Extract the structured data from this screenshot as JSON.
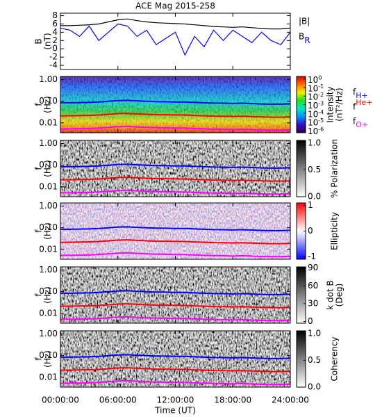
{
  "chart_data": [
    {
      "type": "line",
      "title": "ACE Mag 2015-258",
      "ylabel": [
        "B",
        "(nT)"
      ],
      "ylim": [
        -5,
        8.6
      ],
      "yticks": [
        -4,
        -2,
        0,
        2,
        4,
        6,
        8
      ],
      "x": [
        0,
        1,
        2,
        3,
        4,
        5,
        6,
        7,
        8,
        9,
        10,
        11,
        12,
        13,
        14,
        15,
        16,
        17,
        18,
        19,
        20,
        21,
        22,
        23,
        24
      ],
      "series": [
        {
          "name": "|B|",
          "color": "#000000",
          "values": [
            5.6,
            5.6,
            5.7,
            5.8,
            6.0,
            6.5,
            7.0,
            7.2,
            6.8,
            6.5,
            6.3,
            6.2,
            6.1,
            6.0,
            5.8,
            5.6,
            5.4,
            5.3,
            5.2,
            5.3,
            5.1,
            4.9,
            4.8,
            4.8,
            5.0
          ]
        },
        {
          "name": "B",
          "subscript": "R",
          "color": "#0000ff",
          "values": [
            5.0,
            4.5,
            3.0,
            5.5,
            2.0,
            4.0,
            6.0,
            5.5,
            3.0,
            4.5,
            1.0,
            2.5,
            4.0,
            -1.5,
            3.0,
            0.5,
            4.5,
            2.0,
            4.5,
            3.0,
            1.5,
            4.0,
            2.0,
            1.0,
            4.0
          ]
        }
      ]
    },
    {
      "type": "spectrogram",
      "ylabel": [
        "f",
        "(Hz)"
      ],
      "log_y": true,
      "ylim": [
        0.0035,
        1.4
      ],
      "yticks": [
        {
          "value": 1,
          "label": "1.00"
        },
        {
          "value": 0.1,
          "label": "0.10"
        },
        {
          "value": 0.01,
          "label": "0.01"
        }
      ],
      "colorbar_label": [
        "Intensity",
        "(nT²/Hz)"
      ],
      "colorbar_log": true,
      "clim": [
        5e-07,
        2
      ],
      "colorbar_ticks": [
        {
          "value": 1,
          "label": "10",
          "exponent": "0"
        },
        {
          "value": 0.1,
          "label": "10",
          "exponent": "-1"
        },
        {
          "value": 0.01,
          "label": "10",
          "exponent": "-2"
        },
        {
          "value": 0.001,
          "label": "10",
          "exponent": "-3"
        },
        {
          "value": 0.0001,
          "label": "10",
          "exponent": "-4"
        },
        {
          "value": 1e-05,
          "label": "10",
          "exponent": "-5"
        },
        {
          "value": 1e-06,
          "label": "10",
          "exponent": "-6"
        }
      ],
      "colormap": [
        "#30004a",
        "#3010c0",
        "#0090ff",
        "#00e8c0",
        "#20e020",
        "#f0f000",
        "#ff7000",
        "#e00000"
      ],
      "x": [
        0,
        1,
        2,
        3,
        4,
        5,
        6,
        7,
        8,
        9,
        10,
        11,
        12,
        13,
        14,
        15,
        16,
        17,
        18,
        19,
        20,
        21,
        22,
        23,
        24
      ],
      "series": [
        {
          "name": "f",
          "subscript": "H+",
          "color": "#0000ff",
          "values": [
            0.085,
            0.085,
            0.087,
            0.088,
            0.092,
            0.099,
            0.107,
            0.11,
            0.104,
            0.099,
            0.096,
            0.095,
            0.093,
            0.092,
            0.088,
            0.085,
            0.082,
            0.081,
            0.079,
            0.081,
            0.078,
            0.075,
            0.073,
            0.073,
            0.076
          ]
        },
        {
          "name": "f",
          "superscript": "He+",
          "color": "#ff0000",
          "values": [
            0.0213,
            0.0213,
            0.0218,
            0.022,
            0.023,
            0.0248,
            0.0268,
            0.0275,
            0.026,
            0.0248,
            0.024,
            0.0238,
            0.0233,
            0.023,
            0.022,
            0.0213,
            0.0205,
            0.0203,
            0.0198,
            0.0203,
            0.0195,
            0.0188,
            0.0183,
            0.0183,
            0.019
          ]
        },
        {
          "name": "f",
          "subscript": "O+",
          "color": "#ff00ff",
          "values": [
            0.0053,
            0.0053,
            0.0054,
            0.0055,
            0.0058,
            0.0062,
            0.0067,
            0.0069,
            0.0065,
            0.0062,
            0.006,
            0.0059,
            0.0058,
            0.0058,
            0.0055,
            0.0053,
            0.0051,
            0.0051,
            0.0049,
            0.0051,
            0.0049,
            0.0047,
            0.0046,
            0.0046,
            0.0048
          ]
        }
      ]
    },
    {
      "type": "spectrogram",
      "ylabel": [
        "f",
        "(Hz)"
      ],
      "log_y": true,
      "ylim": [
        0.0035,
        1.4
      ],
      "yticks": [
        {
          "value": 1,
          "label": "1.00"
        },
        {
          "value": 0.1,
          "label": "0.10"
        },
        {
          "value": 0.01,
          "label": "0.01"
        }
      ],
      "colorbar_label": [
        "% Polarization"
      ],
      "clim": [
        0,
        1.05
      ],
      "colorbar_ticks": [
        {
          "value": 0,
          "label": "0.0"
        },
        {
          "value": 0.5,
          "label": "0.5"
        },
        {
          "value": 1,
          "label": "1.0"
        }
      ],
      "colormap": [
        "#ffffff",
        "#000000"
      ]
    },
    {
      "type": "spectrogram",
      "ylabel": [
        "f",
        "(Hz)"
      ],
      "log_y": true,
      "ylim": [
        0.0035,
        1.4
      ],
      "yticks": [
        {
          "value": 1,
          "label": "1.00"
        },
        {
          "value": 0.1,
          "label": "0.10"
        },
        {
          "value": 0.01,
          "label": "0.01"
        }
      ],
      "colorbar_label": [
        "Ellipticity"
      ],
      "clim": [
        -1.1,
        1.1
      ],
      "colorbar_ticks": [
        -1,
        0,
        1
      ],
      "colormap": [
        "#0000ff",
        "#ffffff",
        "#ff0000"
      ]
    },
    {
      "type": "spectrogram",
      "ylabel": [
        "f",
        "(Hz)"
      ],
      "log_y": true,
      "ylim": [
        0.0035,
        1.4
      ],
      "yticks": [
        {
          "value": 1,
          "label": "1.00"
        },
        {
          "value": 0.1,
          "label": "0.10"
        },
        {
          "value": 0.01,
          "label": "0.01"
        }
      ],
      "colorbar_label": [
        "k dot B",
        "(Deg)"
      ],
      "clim": [
        -3,
        92
      ],
      "colorbar_ticks": [
        0,
        30,
        60,
        90
      ],
      "colormap": [
        "#ffffff",
        "#000000"
      ]
    },
    {
      "type": "spectrogram",
      "ylabel": [
        "f",
        "(Hz)"
      ],
      "log_y": true,
      "ylim": [
        0.0035,
        1.4
      ],
      "yticks": [
        {
          "value": 1,
          "label": "1.00"
        },
        {
          "value": 0.1,
          "label": "0.10"
        },
        {
          "value": 0.01,
          "label": "0.01"
        }
      ],
      "colorbar_label": [
        "Coherency"
      ],
      "clim": [
        0,
        1.05
      ],
      "colorbar_ticks": [
        {
          "value": 0,
          "label": "0.0"
        },
        {
          "value": 0.5,
          "label": "0.5"
        },
        {
          "value": 1,
          "label": "1.0"
        }
      ],
      "colormap": [
        "#ffffff",
        "#000000"
      ],
      "xlabel": "Time (UT)",
      "xlim": [
        0,
        24
      ],
      "xticks": [
        {
          "value": 0,
          "label": "00:00:00"
        },
        {
          "value": 6,
          "label": "06:00:00"
        },
        {
          "value": 12,
          "label": "12:00:00"
        },
        {
          "value": 18,
          "label": "18:00:00"
        },
        {
          "value": 24,
          "label": "24:00:00"
        }
      ]
    }
  ]
}
